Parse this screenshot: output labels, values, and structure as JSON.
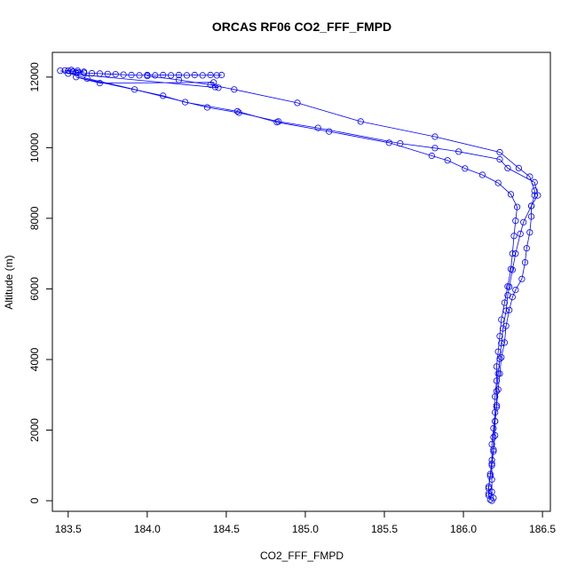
{
  "chart_data": {
    "type": "scatter",
    "title": "ORCAS RF06 CO2_FFF_FMPD",
    "xlabel": "CO2_FFF_FMPD",
    "ylabel": "Altitude (m)",
    "xlim": [
      183.4,
      186.55
    ],
    "ylim": [
      -300,
      12700
    ],
    "xticks": [
      183.5,
      184.0,
      184.5,
      185.0,
      185.5,
      186.0,
      186.5
    ],
    "xtick_labels": [
      "183.5",
      "184.0",
      "184.5",
      "185.0",
      "185.5",
      "186.0",
      "186.5"
    ],
    "yticks": [
      0,
      2000,
      4000,
      6000,
      8000,
      10000,
      12000
    ],
    "ytick_labels": [
      "0",
      "2000",
      "4000",
      "6000",
      "8000",
      "10000",
      "12000"
    ],
    "grid": false,
    "color": "#0000ff",
    "series": [
      {
        "points": [
          [
            184.47,
            12060
          ],
          [
            184.44,
            12050
          ],
          [
            184.4,
            12060
          ],
          [
            184.35,
            12050
          ],
          [
            184.3,
            12060
          ],
          [
            184.25,
            12050
          ],
          [
            184.2,
            12060
          ],
          [
            184.15,
            12050
          ],
          [
            184.1,
            12060
          ],
          [
            184.05,
            12050
          ],
          [
            184.0,
            12060
          ],
          [
            183.95,
            12050
          ],
          [
            183.9,
            12060
          ],
          [
            183.85,
            12070
          ],
          [
            183.8,
            12080
          ],
          [
            183.75,
            12090
          ],
          [
            183.7,
            12100
          ],
          [
            183.65,
            12110
          ],
          [
            183.6,
            12120
          ],
          [
            183.56,
            12140
          ],
          [
            183.53,
            12160
          ],
          [
            183.5,
            12180
          ],
          [
            183.48,
            12190
          ],
          [
            183.52,
            12200
          ],
          [
            183.56,
            12180
          ],
          [
            183.6,
            12150
          ],
          [
            183.55,
            12120
          ],
          [
            183.5,
            12100
          ],
          [
            184.45,
            11700
          ],
          [
            184.43,
            11720
          ],
          [
            184.42,
            11850
          ],
          [
            183.7,
            11830
          ],
          [
            183.55,
            12000
          ],
          [
            184.1,
            11470
          ],
          [
            184.24,
            11290
          ],
          [
            184.57,
            11030
          ],
          [
            184.82,
            10720
          ],
          [
            185.15,
            10460
          ],
          [
            185.53,
            10140
          ],
          [
            185.8,
            9770
          ],
          [
            185.9,
            9640
          ],
          [
            186.01,
            9410
          ],
          [
            186.12,
            9230
          ],
          [
            186.22,
            9000
          ],
          [
            186.3,
            8680
          ],
          [
            186.34,
            8320
          ],
          [
            186.33,
            7930
          ],
          [
            186.32,
            7500
          ],
          [
            186.31,
            7000
          ],
          [
            186.3,
            6560
          ],
          [
            186.28,
            6070
          ],
          [
            186.26,
            5610
          ],
          [
            186.24,
            5130
          ],
          [
            186.23,
            4660
          ],
          [
            186.22,
            4220
          ],
          [
            186.21,
            3800
          ],
          [
            186.21,
            3400
          ],
          [
            186.2,
            2950
          ],
          [
            186.2,
            2500
          ],
          [
            186.19,
            2050
          ],
          [
            186.18,
            1600
          ],
          [
            186.18,
            1150
          ],
          [
            186.17,
            750
          ],
          [
            186.16,
            400
          ],
          [
            186.16,
            200
          ],
          [
            186.17,
            30
          ]
        ]
      },
      {
        "points": [
          [
            184.0,
            12030
          ],
          [
            184.2,
            11920
          ],
          [
            184.4,
            11780
          ],
          [
            184.55,
            11650
          ],
          [
            184.95,
            11270
          ],
          [
            185.35,
            10740
          ],
          [
            185.82,
            10310
          ],
          [
            186.23,
            9870
          ],
          [
            186.35,
            9420
          ],
          [
            186.42,
            9180
          ],
          [
            186.45,
            8780
          ],
          [
            186.45,
            8650
          ],
          [
            186.43,
            8350
          ],
          [
            186.43,
            8050
          ],
          [
            186.42,
            7600
          ],
          [
            186.4,
            7150
          ],
          [
            186.39,
            6750
          ],
          [
            186.37,
            6280
          ],
          [
            186.33,
            5970
          ],
          [
            186.31,
            5770
          ],
          [
            186.29,
            5400
          ],
          [
            186.27,
            4950
          ],
          [
            186.26,
            4480
          ],
          [
            186.24,
            4060
          ],
          [
            186.23,
            3600
          ],
          [
            186.22,
            3150
          ],
          [
            186.21,
            2700
          ],
          [
            186.2,
            2250
          ],
          [
            186.19,
            1800
          ],
          [
            186.19,
            1400
          ],
          [
            186.18,
            1000
          ],
          [
            186.18,
            600
          ],
          [
            186.18,
            250
          ],
          [
            186.19,
            80
          ]
        ]
      },
      {
        "points": [
          [
            183.45,
            12180
          ],
          [
            183.62,
            11960
          ],
          [
            183.92,
            11650
          ],
          [
            184.38,
            11140
          ],
          [
            184.58,
            10990
          ],
          [
            184.83,
            10740
          ],
          [
            185.08,
            10560
          ],
          [
            185.6,
            10120
          ],
          [
            185.82,
            9990
          ],
          [
            185.97,
            9890
          ],
          [
            186.23,
            9670
          ],
          [
            186.28,
            9420
          ],
          [
            186.45,
            9020
          ],
          [
            186.47,
            8650
          ],
          [
            186.43,
            8350
          ],
          [
            186.38,
            7890
          ],
          [
            186.36,
            7560
          ],
          [
            186.33,
            7000
          ],
          [
            186.31,
            6540
          ],
          [
            186.29,
            6060
          ],
          [
            186.28,
            5820
          ],
          [
            186.27,
            5380
          ],
          [
            186.25,
            4880
          ],
          [
            186.24,
            4460
          ],
          [
            186.23,
            4020
          ],
          [
            186.22,
            3600
          ],
          [
            186.21,
            3100
          ],
          [
            186.21,
            2650
          ],
          [
            186.2,
            2250
          ],
          [
            186.2,
            1850
          ],
          [
            186.19,
            1450
          ],
          [
            186.18,
            1050
          ],
          [
            186.17,
            700
          ],
          [
            186.16,
            350
          ],
          [
            186.16,
            150
          ],
          [
            186.18,
            0
          ]
        ]
      }
    ]
  }
}
